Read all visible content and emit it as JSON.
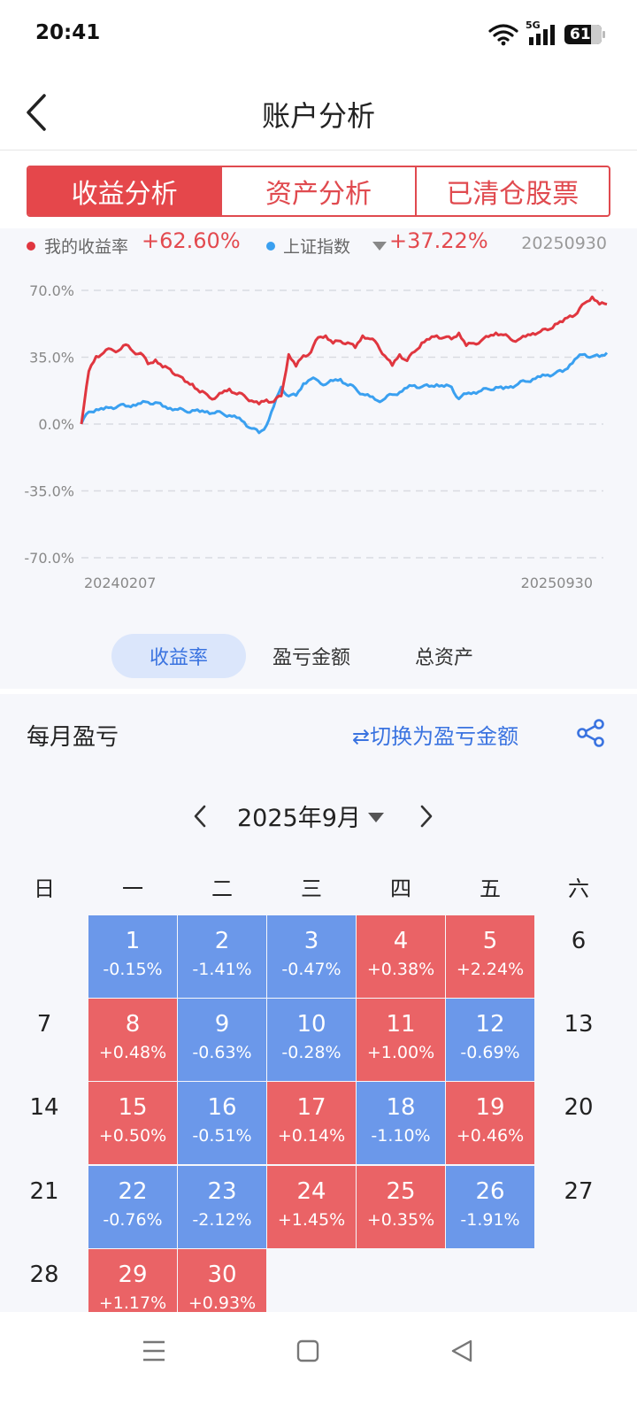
{
  "status": {
    "time": "20:41",
    "network": "5G",
    "battery": "61"
  },
  "header": {
    "title": "账户分析"
  },
  "segments": [
    {
      "label": "收益分析",
      "active": true
    },
    {
      "label": "资产分析",
      "active": false
    },
    {
      "label": "已清仓股票",
      "active": false
    }
  ],
  "legend": {
    "mine_label": "我的收益率",
    "mine_value": "+62.60%",
    "index_label": "上证指数",
    "index_value": "+37.22%",
    "date": "20250930",
    "mine_color": "#e0363f",
    "index_color": "#3aa0f0"
  },
  "chart_data": {
    "type": "line",
    "y_ticks": [
      "70.0%",
      "35.0%",
      "0.0%",
      "-35.0%",
      "-70.0%"
    ],
    "ylim": [
      -70,
      70
    ],
    "x_start_label": "20240207",
    "x_end_label": "20250930",
    "series": [
      {
        "name": "我的收益率",
        "color": "#e0363f",
        "values": [
          0,
          28,
          36,
          38,
          40,
          39,
          42,
          38,
          37,
          31,
          33,
          29,
          28,
          25,
          22,
          21,
          17,
          16,
          14,
          17,
          19,
          16,
          15,
          12,
          10,
          12,
          11,
          14,
          36,
          30,
          36,
          38,
          46,
          47,
          43,
          44,
          43,
          40,
          46,
          44,
          41,
          35,
          30,
          36,
          33,
          38,
          43,
          45,
          47,
          46,
          45,
          48,
          41,
          42,
          43,
          45,
          47,
          46,
          44,
          44,
          46,
          48,
          49,
          50,
          53,
          54,
          57,
          58,
          63,
          66,
          62,
          62
        ]
      },
      {
        "name": "上证指数",
        "color": "#3aa0f0",
        "values": [
          0,
          6,
          7,
          7,
          8,
          9,
          9,
          10,
          11,
          12,
          12,
          10,
          9,
          8,
          7,
          7,
          6,
          6,
          5,
          5,
          4,
          3,
          1,
          -2,
          -4,
          0,
          10,
          20,
          15,
          15,
          21,
          23,
          22,
          20,
          22,
          23,
          20,
          19,
          16,
          15,
          13,
          14,
          16,
          17,
          19,
          20,
          19,
          19,
          20,
          19,
          19,
          13,
          16,
          17,
          18,
          19,
          20,
          19,
          20,
          21,
          22,
          23,
          24,
          25,
          26,
          27,
          31,
          35,
          37,
          36,
          36,
          38
        ]
      }
    ]
  },
  "metric_tabs": [
    {
      "label": "收益率",
      "active": true
    },
    {
      "label": "盈亏金额",
      "active": false
    },
    {
      "label": "总资产",
      "active": false
    }
  ],
  "monthly": {
    "title": "每月盈亏",
    "switch_label": "⇄切换为盈亏金额",
    "month_label": "2025年9月",
    "weekdays": [
      "日",
      "一",
      "二",
      "三",
      "四",
      "五",
      "六"
    ],
    "up_color": "#ea6366",
    "down_color": "#6b98ea",
    "days": [
      {
        "day": "1",
        "pct": "-0.15%",
        "dir": "down",
        "col": 1,
        "row": 0
      },
      {
        "day": "2",
        "pct": "-1.41%",
        "dir": "down",
        "col": 2,
        "row": 0
      },
      {
        "day": "3",
        "pct": "-0.47%",
        "dir": "down",
        "col": 3,
        "row": 0
      },
      {
        "day": "4",
        "pct": "+0.38%",
        "dir": "up",
        "col": 4,
        "row": 0
      },
      {
        "day": "5",
        "pct": "+2.24%",
        "dir": "up",
        "col": 5,
        "row": 0
      },
      {
        "day": "6",
        "pct": "",
        "dir": "none",
        "col": 6,
        "row": 0
      },
      {
        "day": "7",
        "pct": "",
        "dir": "none",
        "col": 0,
        "row": 1
      },
      {
        "day": "8",
        "pct": "+0.48%",
        "dir": "up",
        "col": 1,
        "row": 1
      },
      {
        "day": "9",
        "pct": "-0.63%",
        "dir": "down",
        "col": 2,
        "row": 1
      },
      {
        "day": "10",
        "pct": "-0.28%",
        "dir": "down",
        "col": 3,
        "row": 1
      },
      {
        "day": "11",
        "pct": "+1.00%",
        "dir": "up",
        "col": 4,
        "row": 1
      },
      {
        "day": "12",
        "pct": "-0.69%",
        "dir": "down",
        "col": 5,
        "row": 1
      },
      {
        "day": "13",
        "pct": "",
        "dir": "none",
        "col": 6,
        "row": 1
      },
      {
        "day": "14",
        "pct": "",
        "dir": "none",
        "col": 0,
        "row": 2
      },
      {
        "day": "15",
        "pct": "+0.50%",
        "dir": "up",
        "col": 1,
        "row": 2
      },
      {
        "day": "16",
        "pct": "-0.51%",
        "dir": "down",
        "col": 2,
        "row": 2
      },
      {
        "day": "17",
        "pct": "+0.14%",
        "dir": "up",
        "col": 3,
        "row": 2
      },
      {
        "day": "18",
        "pct": "-1.10%",
        "dir": "down",
        "col": 4,
        "row": 2
      },
      {
        "day": "19",
        "pct": "+0.46%",
        "dir": "up",
        "col": 5,
        "row": 2
      },
      {
        "day": "20",
        "pct": "",
        "dir": "none",
        "col": 6,
        "row": 2
      },
      {
        "day": "21",
        "pct": "",
        "dir": "none",
        "col": 0,
        "row": 3
      },
      {
        "day": "22",
        "pct": "-0.76%",
        "dir": "down",
        "col": 1,
        "row": 3
      },
      {
        "day": "23",
        "pct": "-2.12%",
        "dir": "down",
        "col": 2,
        "row": 3
      },
      {
        "day": "24",
        "pct": "+1.45%",
        "dir": "up",
        "col": 3,
        "row": 3
      },
      {
        "day": "25",
        "pct": "+0.35%",
        "dir": "up",
        "col": 4,
        "row": 3
      },
      {
        "day": "26",
        "pct": "-1.91%",
        "dir": "down",
        "col": 5,
        "row": 3
      },
      {
        "day": "27",
        "pct": "",
        "dir": "none",
        "col": 6,
        "row": 3
      },
      {
        "day": "28",
        "pct": "",
        "dir": "none",
        "col": 0,
        "row": 4
      },
      {
        "day": "29",
        "pct": "+1.17%",
        "dir": "up",
        "col": 1,
        "row": 4
      },
      {
        "day": "30",
        "pct": "+0.93%",
        "dir": "up",
        "col": 2,
        "row": 4
      }
    ]
  },
  "icons": {
    "back": "back-chevron-icon",
    "share": "share-icon",
    "prev": "chevron-left-icon",
    "next": "chevron-right-icon",
    "menu": "menu-icon",
    "home": "home-icon",
    "back_nav": "back-triangle-icon"
  }
}
